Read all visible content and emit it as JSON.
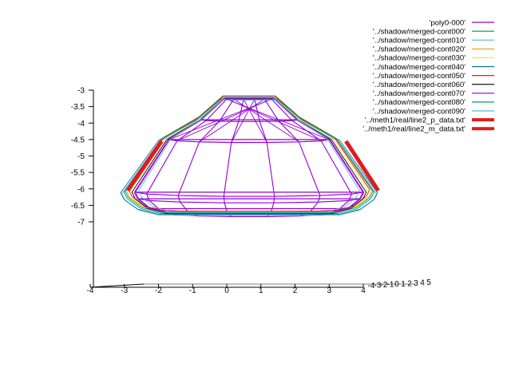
{
  "chart_data": {
    "type": "line",
    "title": "",
    "xlabel": "",
    "ylabel": "",
    "zlabel": "",
    "z_axis": {
      "ticks": [
        -3,
        -3.5,
        -4,
        -4.5,
        -5,
        -5.5,
        -6,
        -6.5,
        -7
      ],
      "tick_labels": [
        "-3",
        "-3.5",
        "-4",
        "-4.5",
        "-5",
        "-5.5",
        "-6",
        "-6.5",
        "-7"
      ]
    },
    "x_axis": {
      "ticks": [
        -4,
        -3,
        -2,
        -1,
        0,
        1,
        2,
        3,
        4
      ],
      "tick_labels": [
        "-4",
        "-3",
        "-2",
        "-1",
        "0",
        "1",
        "2",
        "3",
        "4"
      ]
    },
    "y_axis": {
      "ticks": [
        -4,
        -3,
        -2,
        -1,
        0,
        1,
        2,
        3,
        4,
        5
      ],
      "tick_labels": [
        "-4",
        "-3",
        "-2",
        "-1",
        "0",
        "1",
        "2",
        "3",
        "4",
        "5"
      ]
    },
    "legend_position": "top-right",
    "series": [
      {
        "name": "'poly0-000'",
        "color": "#9400d3",
        "style": "mesh",
        "rings": [
          {
            "z": -3.25,
            "rx": 0.8
          },
          {
            "z": -3.9,
            "rx": 1.55
          },
          {
            "z": -4.5,
            "rx": 2.6
          },
          {
            "z": -6.1,
            "rx": 3.7
          },
          {
            "z": -6.3,
            "rx": 3.6
          },
          {
            "z": -6.6,
            "rx": 3.2
          },
          {
            "z": -6.75,
            "rx": 2.6
          }
        ]
      },
      {
        "name": "'../shadow/merged-cont000'",
        "color": "#009e73",
        "style": "outline",
        "scale": 1.1,
        "zshift": 0.0
      },
      {
        "name": "'../shadow/merged-cont010'",
        "color": "#56b4e9",
        "style": "outline",
        "scale": 1.12,
        "zshift": -0.05
      },
      {
        "name": "'../shadow/merged-cont020'",
        "color": "#e69f00",
        "style": "outline",
        "scale": 1.08,
        "zshift": 0.05
      },
      {
        "name": "'../shadow/merged-cont030'",
        "color": "#f0e442",
        "style": "outline",
        "scale": 1.05,
        "zshift": 0.02
      },
      {
        "name": "'../shadow/merged-cont040'",
        "color": "#0072b2",
        "style": "outline",
        "scale": 1.13,
        "zshift": -0.02
      },
      {
        "name": "'../shadow/merged-cont050'",
        "color": "#e51e10",
        "style": "outline",
        "scale": 1.06,
        "zshift": 0.08
      },
      {
        "name": "'../shadow/merged-cont060'",
        "color": "#000000",
        "style": "outline",
        "scale": 1.03,
        "zshift": 0.0
      },
      {
        "name": "'../shadow/merged-cont070'",
        "color": "#9400d3",
        "style": "outline",
        "scale": 1.01,
        "zshift": 0.0
      },
      {
        "name": "'../shadow/merged-cont080'",
        "color": "#009e73",
        "style": "outline",
        "scale": 1.09,
        "zshift": 0.03
      },
      {
        "name": "'../shadow/merged-cont090'",
        "color": "#56b4e9",
        "style": "outline",
        "scale": 0.97,
        "zshift": 0.05
      },
      {
        "name": "'../meth1/real/line2_p_data.txt'",
        "color": "#e31a1c",
        "style": "thick",
        "points": [
          {
            "x": -2.85,
            "z": -4.55
          },
          {
            "x": -3.95,
            "z": -6.05
          }
        ]
      },
      {
        "name": "'../meth1/real/line2_m_data.txt'",
        "color": "#e31a1c",
        "style": "thick",
        "points": [
          {
            "x": 3.15,
            "z": -4.55
          },
          {
            "x": 4.2,
            "z": -6.05
          }
        ]
      }
    ]
  }
}
